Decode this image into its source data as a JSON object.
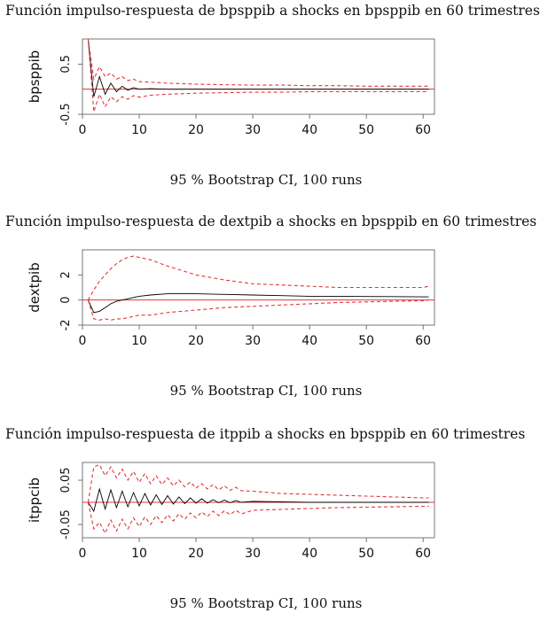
{
  "chart_data": [
    {
      "type": "line",
      "title": "Función impulso-respuesta de bpsppib a shocks en bpsppib en 60 trimestres",
      "xlabel": "95 % Bootstrap CI, 100 runs",
      "ylabel": "bpsppib",
      "xlim": [
        0,
        62
      ],
      "ylim": [
        -0.5,
        1.0
      ],
      "x_ticks": [
        0,
        10,
        20,
        30,
        40,
        50,
        60
      ],
      "y_ticks": [
        "-0.5",
        "0.5"
      ],
      "series": [
        {
          "x": [
            1,
            2,
            3,
            4,
            5,
            6,
            7,
            8,
            9,
            10,
            12,
            15,
            20,
            25,
            30,
            35,
            40,
            45,
            50,
            55,
            60,
            61
          ],
          "values": [
            1.0,
            -0.15,
            0.25,
            -0.1,
            0.12,
            -0.05,
            0.06,
            -0.02,
            0.03,
            0.0,
            0.01,
            0.0,
            0.0,
            0.0,
            0.0,
            0.0,
            0.0,
            0.0,
            0.0,
            0.0,
            0.0,
            0.0
          ]
        },
        {
          "x": [
            1,
            2,
            3,
            4,
            5,
            6,
            7,
            8,
            9,
            10,
            12,
            15,
            20,
            25,
            30,
            35,
            40,
            45,
            50,
            55,
            60,
            61
          ],
          "values": [
            1.0,
            0.2,
            0.45,
            0.25,
            0.32,
            0.2,
            0.25,
            0.17,
            0.2,
            0.15,
            0.14,
            0.12,
            0.1,
            0.09,
            0.08,
            0.08,
            0.07,
            0.07,
            0.06,
            0.06,
            0.06,
            0.06
          ]
        },
        {
          "x": [
            1,
            2,
            3,
            4,
            5,
            6,
            7,
            8,
            9,
            10,
            12,
            15,
            20,
            25,
            30,
            35,
            40,
            45,
            50,
            55,
            60,
            61
          ],
          "values": [
            1.0,
            -0.45,
            -0.1,
            -0.35,
            -0.15,
            -0.25,
            -0.15,
            -0.2,
            -0.13,
            -0.16,
            -0.12,
            -0.1,
            -0.08,
            -0.07,
            -0.06,
            -0.06,
            -0.05,
            -0.05,
            -0.05,
            -0.05,
            -0.05,
            -0.05
          ]
        }
      ]
    },
    {
      "type": "line",
      "title": "Función impulso-respuesta de dextpib a shocks en bpsppib en 60 trimestres",
      "xlabel": "95 % Bootstrap CI, 100 runs",
      "ylabel": "dextpib",
      "xlim": [
        0,
        62
      ],
      "ylim": [
        -2,
        4
      ],
      "x_ticks": [
        0,
        10,
        20,
        30,
        40,
        50,
        60
      ],
      "y_ticks": [
        "-2",
        "0",
        "2"
      ],
      "series": [
        {
          "x": [
            1,
            2,
            3,
            4,
            5,
            6,
            7,
            8,
            9,
            10,
            12,
            15,
            20,
            25,
            30,
            35,
            40,
            45,
            50,
            55,
            60,
            61
          ],
          "values": [
            0.0,
            -1.0,
            -0.9,
            -0.6,
            -0.3,
            -0.1,
            0.0,
            0.1,
            0.2,
            0.3,
            0.4,
            0.5,
            0.5,
            0.45,
            0.4,
            0.35,
            0.3,
            0.3,
            0.28,
            0.27,
            0.25,
            0.25
          ]
        },
        {
          "x": [
            1,
            2,
            3,
            4,
            5,
            6,
            7,
            8,
            9,
            10,
            12,
            15,
            20,
            25,
            30,
            35,
            40,
            45,
            50,
            55,
            60,
            61
          ],
          "values": [
            0.0,
            0.8,
            1.5,
            2.0,
            2.5,
            2.9,
            3.2,
            3.4,
            3.5,
            3.4,
            3.2,
            2.7,
            2.0,
            1.6,
            1.3,
            1.2,
            1.1,
            1.0,
            1.0,
            1.0,
            1.0,
            1.1
          ]
        },
        {
          "x": [
            1,
            2,
            3,
            4,
            5,
            6,
            7,
            8,
            9,
            10,
            12,
            15,
            20,
            25,
            30,
            35,
            40,
            45,
            50,
            55,
            60,
            61
          ],
          "values": [
            0.0,
            -1.5,
            -1.6,
            -1.5,
            -1.6,
            -1.5,
            -1.5,
            -1.4,
            -1.3,
            -1.2,
            -1.2,
            -1.0,
            -0.8,
            -0.6,
            -0.5,
            -0.4,
            -0.3,
            -0.2,
            -0.15,
            -0.1,
            -0.05,
            0.0
          ]
        }
      ]
    },
    {
      "type": "line",
      "title": "Función impulso-respuesta de itppib a shocks en bpsppib en 60 trimestres",
      "xlabel": "95 % Bootstrap CI, 100 runs",
      "ylabel": "itppcib",
      "xlim": [
        0,
        62
      ],
      "ylim": [
        -0.08,
        0.09
      ],
      "x_ticks": [
        0,
        10,
        20,
        30,
        40,
        50,
        60
      ],
      "y_ticks": [
        "-0.05",
        "0.05"
      ],
      "series": [
        {
          "x": [
            1,
            2,
            3,
            4,
            5,
            6,
            7,
            8,
            9,
            10,
            11,
            12,
            13,
            14,
            15,
            16,
            17,
            18,
            19,
            20,
            21,
            22,
            23,
            24,
            25,
            26,
            27,
            28,
            30,
            35,
            40,
            45,
            50,
            55,
            60,
            61
          ],
          "values": [
            0.0,
            -0.02,
            0.03,
            -0.015,
            0.028,
            -0.012,
            0.025,
            -0.01,
            0.022,
            -0.008,
            0.02,
            -0.006,
            0.017,
            -0.005,
            0.015,
            -0.004,
            0.012,
            -0.003,
            0.01,
            -0.002,
            0.008,
            -0.002,
            0.006,
            -0.001,
            0.005,
            -0.001,
            0.004,
            0.0,
            0.002,
            0.001,
            0.0,
            0.0,
            0.0,
            0.0,
            0.0,
            0.0
          ]
        },
        {
          "x": [
            1,
            2,
            3,
            4,
            5,
            6,
            7,
            8,
            9,
            10,
            11,
            12,
            13,
            14,
            15,
            16,
            17,
            18,
            19,
            20,
            21,
            22,
            23,
            24,
            25,
            26,
            27,
            28,
            30,
            35,
            40,
            45,
            50,
            55,
            60,
            61
          ],
          "values": [
            0.0,
            0.08,
            0.085,
            0.06,
            0.08,
            0.055,
            0.075,
            0.05,
            0.07,
            0.045,
            0.065,
            0.042,
            0.06,
            0.04,
            0.055,
            0.037,
            0.05,
            0.035,
            0.046,
            0.032,
            0.042,
            0.03,
            0.04,
            0.028,
            0.037,
            0.027,
            0.034,
            0.026,
            0.025,
            0.02,
            0.018,
            0.016,
            0.014,
            0.012,
            0.01,
            0.01
          ]
        },
        {
          "x": [
            1,
            2,
            3,
            4,
            5,
            6,
            7,
            8,
            9,
            10,
            11,
            12,
            13,
            14,
            15,
            16,
            17,
            18,
            19,
            20,
            21,
            22,
            23,
            24,
            25,
            26,
            27,
            28,
            30,
            35,
            40,
            45,
            50,
            55,
            60,
            61
          ],
          "values": [
            0.0,
            -0.06,
            -0.045,
            -0.07,
            -0.04,
            -0.065,
            -0.038,
            -0.06,
            -0.035,
            -0.055,
            -0.033,
            -0.05,
            -0.03,
            -0.046,
            -0.028,
            -0.042,
            -0.026,
            -0.038,
            -0.024,
            -0.035,
            -0.022,
            -0.032,
            -0.02,
            -0.03,
            -0.019,
            -0.028,
            -0.018,
            -0.026,
            -0.018,
            -0.016,
            -0.014,
            -0.012,
            -0.011,
            -0.01,
            -0.009,
            -0.009
          ]
        }
      ]
    }
  ]
}
